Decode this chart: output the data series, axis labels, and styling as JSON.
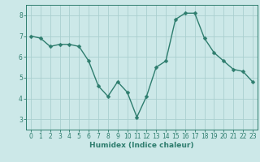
{
  "xlabel": "Humidex (Indice chaleur)",
  "ylabel": "",
  "x": [
    0,
    1,
    2,
    3,
    4,
    5,
    6,
    7,
    8,
    9,
    10,
    11,
    12,
    13,
    14,
    15,
    16,
    17,
    18,
    19,
    20,
    21,
    22,
    23
  ],
  "y": [
    7.0,
    6.9,
    6.5,
    6.6,
    6.6,
    6.5,
    5.8,
    4.6,
    4.1,
    4.8,
    4.3,
    3.1,
    4.1,
    5.5,
    5.8,
    7.8,
    8.1,
    8.1,
    6.9,
    6.2,
    5.8,
    5.4,
    5.3,
    4.8
  ],
  "line_color": "#2e7d6e",
  "marker": "D",
  "marker_size": 2.5,
  "bg_color": "#cce8e8",
  "grid_color": "#aacfcf",
  "axis_bg": "#cce8e8",
  "ylim": [
    2.5,
    8.5
  ],
  "xlim": [
    -0.5,
    23.5
  ],
  "yticks": [
    3,
    4,
    5,
    6,
    7,
    8
  ],
  "xticks": [
    0,
    1,
    2,
    3,
    4,
    5,
    6,
    7,
    8,
    9,
    10,
    11,
    12,
    13,
    14,
    15,
    16,
    17,
    18,
    19,
    20,
    21,
    22,
    23
  ],
  "tick_fontsize": 5.5,
  "xlabel_fontsize": 6.5,
  "line_width": 1.0
}
